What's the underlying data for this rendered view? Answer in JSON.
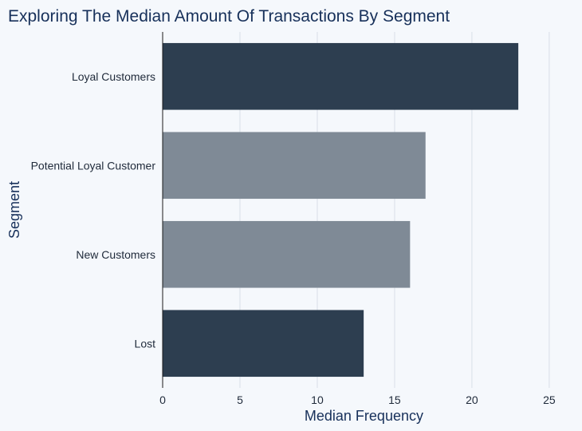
{
  "chart_data": {
    "type": "bar",
    "orientation": "horizontal",
    "title": "Exploring The Median Amount Of Transactions By Segment",
    "xlabel": "Median Frequency",
    "ylabel": "Segment",
    "categories": [
      "Loyal Customers",
      "Potential Loyal Customer",
      "New Customers",
      "Lost"
    ],
    "values": [
      23,
      17,
      16,
      13
    ],
    "bar_colors": [
      "#2d3e50",
      "#7f8a96",
      "#7f8a96",
      "#2d3e50"
    ],
    "xlim": [
      0,
      26.5
    ],
    "xticks": [
      0,
      5,
      10,
      15,
      20,
      25
    ],
    "grid": true,
    "legend": "none"
  }
}
